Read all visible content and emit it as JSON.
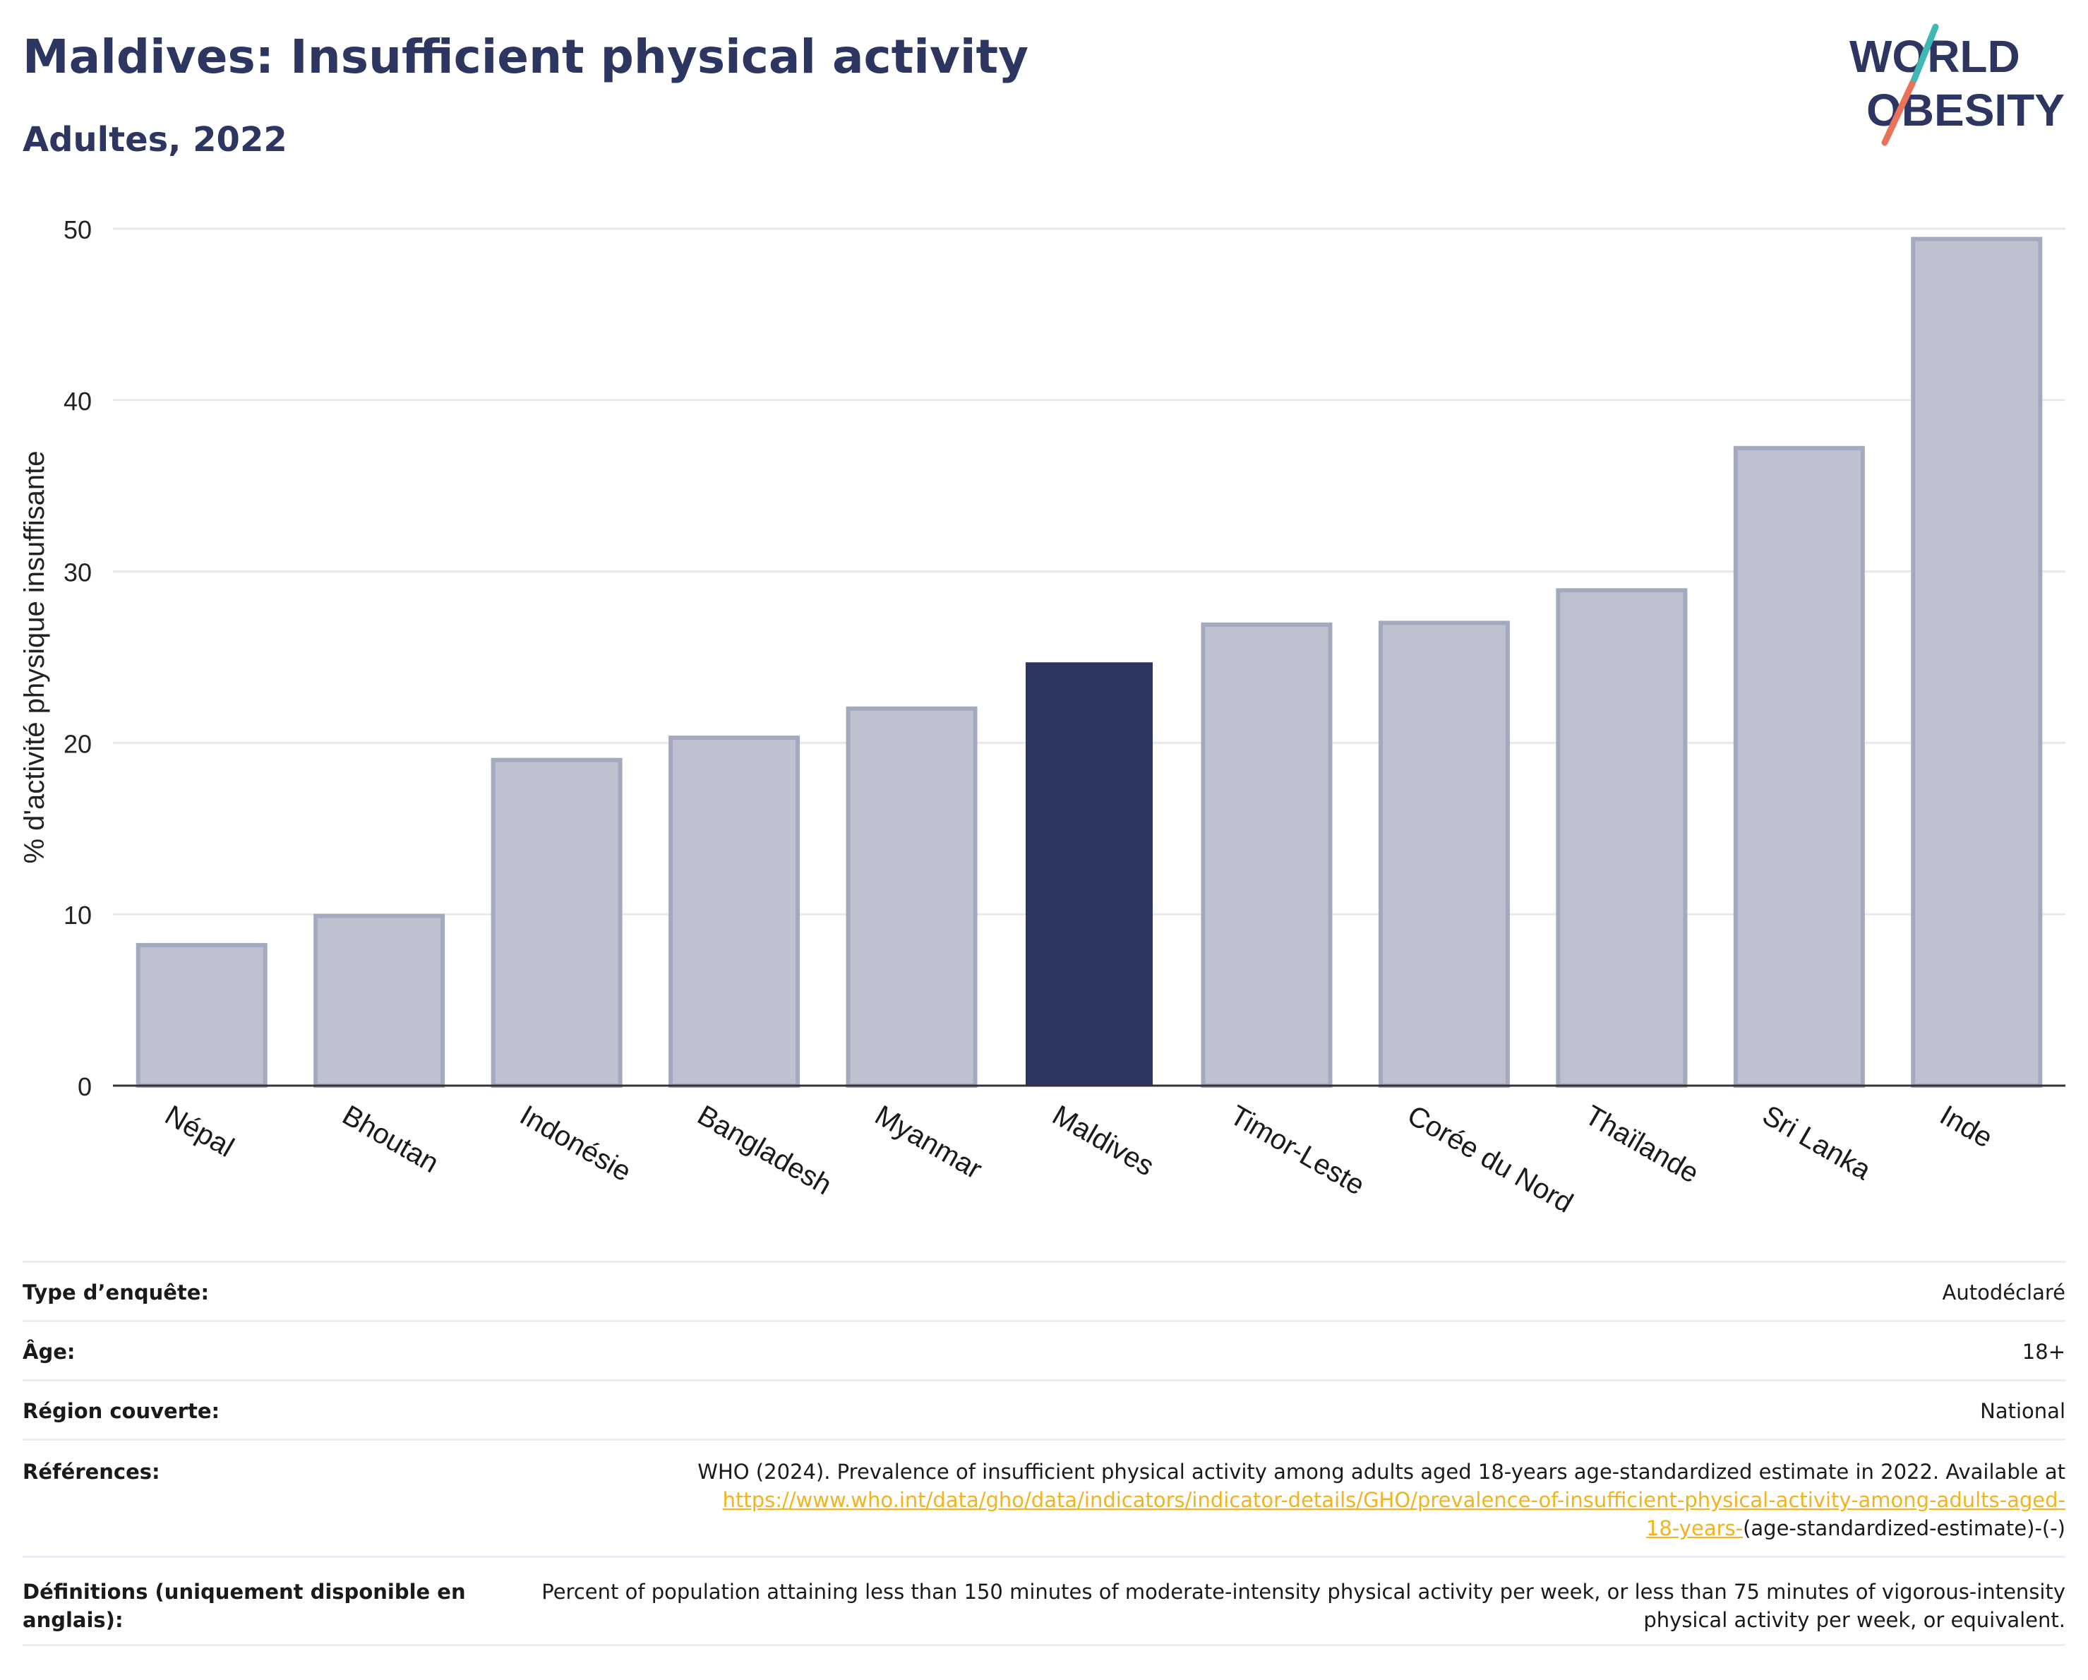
{
  "header": {
    "title": "Maldives: Insufficient physical activity",
    "subtitle": "Adultes, 2022"
  },
  "logo": {
    "line1": "WORLD",
    "line2": "OBESITY"
  },
  "colors": {
    "highlight_bar": "#2d3561",
    "other_bar_fill": "#bec2d0",
    "other_bar_stroke": "#a3a9be",
    "title": "#2d3561",
    "link": "#f2b31c"
  },
  "chart_data": {
    "type": "bar",
    "categories": [
      "Népal",
      "Bhoutan",
      "Indonésie",
      "Bangladesh",
      "Myanmar",
      "Maldives",
      "Timor-Leste",
      "Corée du Nord",
      "Thaïlande",
      "Sri Lanka",
      "Inde"
    ],
    "values": [
      8.2,
      9.9,
      19.0,
      20.3,
      22.0,
      24.7,
      26.9,
      27.0,
      28.9,
      37.2,
      49.4
    ],
    "highlight": "Maldives",
    "ylabel": "% d'activité physique insuffisante",
    "xlabel": "",
    "ylim": [
      0,
      50
    ],
    "yticks": [
      0,
      10,
      20,
      30,
      40,
      50
    ],
    "grid": true,
    "legend": "none"
  },
  "info": {
    "survey_type": {
      "label": "Type d’enquête:",
      "value": "Autodéclaré"
    },
    "age": {
      "label": "Âge:",
      "value": "18+"
    },
    "region": {
      "label": "Région couverte:",
      "value": "National"
    },
    "references": {
      "label": "Références:",
      "line1": "WHO (2024). Prevalence of insufficient physical activity among adults aged 18-years age-standardized estimate in 2022. Available at",
      "link_part1": "https://www.who.int/data/gho/data/indicators/indicator-details/GHO/prevalence-of-insufficient-physical-activity-among-adults-aged-",
      "link_part2": "18-years-",
      "suffix": "(age-standardized-estimate)-(-)"
    },
    "definitions": {
      "label": "Définitions (uniquement disponible en anglais):",
      "value": "Percent of population attaining less than 150 minutes of moderate-intensity physical activity per week, or less than 75 minutes of vigorous-intensity physical activity per week, or equivalent."
    }
  }
}
